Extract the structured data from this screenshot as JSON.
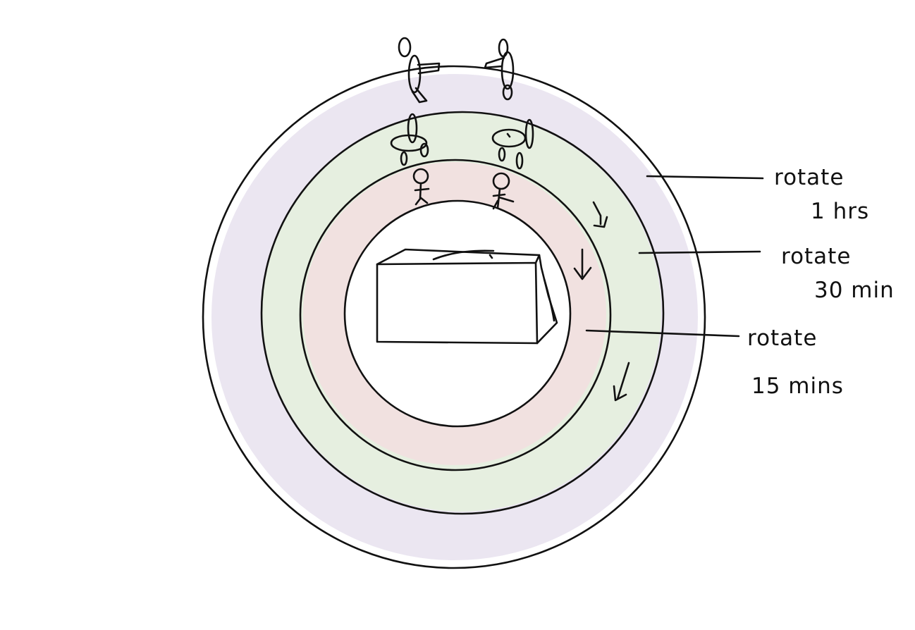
{
  "labels": {
    "outer_ring": {
      "line1": "rotate",
      "line2": "1 hrs"
    },
    "middle_ring": {
      "line1": "rotate",
      "line2": "30 min"
    },
    "inner_ring": {
      "line1": "rotate",
      "line2": "15 mins"
    }
  },
  "colors": {
    "outer_ring_fill": "#ebe6f1",
    "middle_ring_fill": "#e6efe0",
    "inner_ring_fill": "#f1e1e0",
    "ink": "#111111"
  },
  "icons": [
    "standing-person-icon",
    "chair-icon",
    "child-figure-icon",
    "table-box-icon",
    "rotation-arrow-icon"
  ]
}
